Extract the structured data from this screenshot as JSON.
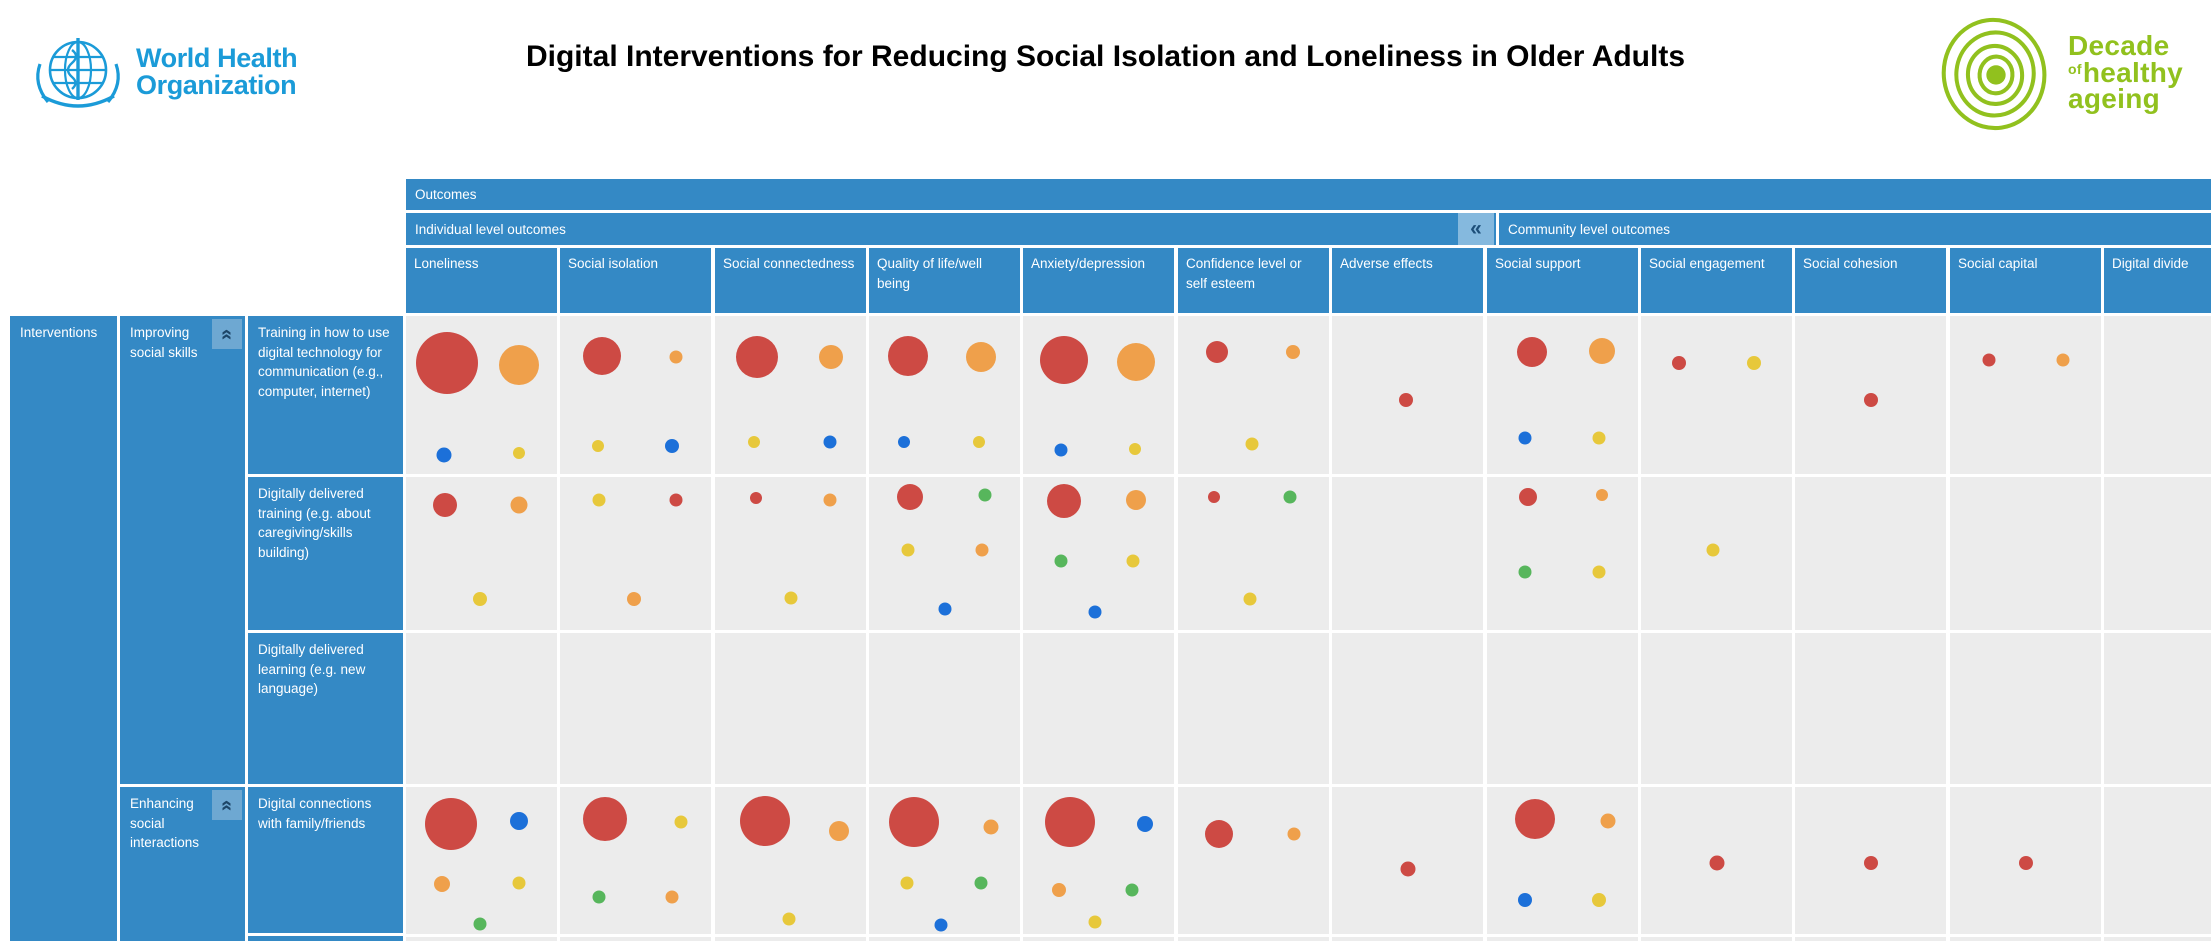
{
  "header": {
    "who_logo": {
      "line1": "World Health",
      "line2": "Organization"
    },
    "title": "Digital Interventions for Reducing Social Isolation and Loneliness in Older Adults",
    "decade_logo": {
      "word1": "Decade",
      "word2_small": "of",
      "word2": "healthy",
      "word3": "ageing"
    }
  },
  "colors": {
    "header_blue": "#3489c5",
    "cell_gray": "#ececec",
    "who_blue": "#1b9bd8",
    "decade_green": "#91c11e",
    "bubbles": {
      "red": "#cd4a44",
      "orange": "#efa04b",
      "blue": "#1c70d9",
      "yellow": "#e7c83b",
      "green": "#57b65c"
    }
  },
  "matrix": {
    "outcomes_label": "Outcomes",
    "individual_group_label": "Individual level outcomes",
    "community_group_label": "Community level outcomes",
    "interventions_label": "Interventions",
    "icons": {
      "collapse_left": "«",
      "collapse_up": "«"
    },
    "columns": [
      {
        "id": "loneliness",
        "label": "Loneliness",
        "group": "individual"
      },
      {
        "id": "social_isolation",
        "label": "Social isolation",
        "group": "individual"
      },
      {
        "id": "social_connectedness",
        "label": "Social connectedness",
        "group": "individual"
      },
      {
        "id": "quality_of_life",
        "label": "Quality of life/well being",
        "group": "individual"
      },
      {
        "id": "anxiety_depression",
        "label": "Anxiety/depression",
        "group": "individual"
      },
      {
        "id": "confidence",
        "label": "Confidence level or self esteem",
        "group": "individual"
      },
      {
        "id": "adverse_effects",
        "label": "Adverse effects",
        "group": "individual"
      },
      {
        "id": "social_support",
        "label": "Social support",
        "group": "community"
      },
      {
        "id": "social_engagement",
        "label": "Social engagement",
        "group": "community"
      },
      {
        "id": "social_cohesion",
        "label": "Social cohesion",
        "group": "community"
      },
      {
        "id": "social_capital",
        "label": "Social capital",
        "group": "community"
      },
      {
        "id": "digital_divide",
        "label": "Digital divide",
        "group": "community"
      }
    ],
    "row_groups": [
      {
        "label": "Improving social skills",
        "rows": [
          {
            "label": "Training in how to use digital technology for communication (e.g., computer, internet)",
            "cells": {
              "loneliness": [
                {
                  "c": "red",
                  "x": 27,
                  "y": 30,
                  "d": 62
                },
                {
                  "c": "orange",
                  "x": 75,
                  "y": 31,
                  "d": 40
                },
                {
                  "c": "blue",
                  "x": 25,
                  "y": 88,
                  "d": 15
                },
                {
                  "c": "yellow",
                  "x": 75,
                  "y": 87,
                  "d": 12
                }
              ],
              "social_isolation": [
                {
                  "c": "red",
                  "x": 28,
                  "y": 25,
                  "d": 38
                },
                {
                  "c": "orange",
                  "x": 77,
                  "y": 26,
                  "d": 13
                },
                {
                  "c": "yellow",
                  "x": 25,
                  "y": 82,
                  "d": 12
                },
                {
                  "c": "blue",
                  "x": 74,
                  "y": 82,
                  "d": 14
                }
              ],
              "social_connectedness": [
                {
                  "c": "red",
                  "x": 28,
                  "y": 26,
                  "d": 42
                },
                {
                  "c": "orange",
                  "x": 77,
                  "y": 26,
                  "d": 24
                },
                {
                  "c": "yellow",
                  "x": 26,
                  "y": 80,
                  "d": 12
                },
                {
                  "c": "blue",
                  "x": 76,
                  "y": 80,
                  "d": 13
                }
              ],
              "quality_of_life": [
                {
                  "c": "red",
                  "x": 26,
                  "y": 25,
                  "d": 40
                },
                {
                  "c": "orange",
                  "x": 74,
                  "y": 26,
                  "d": 30
                },
                {
                  "c": "blue",
                  "x": 23,
                  "y": 80,
                  "d": 12
                },
                {
                  "c": "yellow",
                  "x": 73,
                  "y": 80,
                  "d": 12
                }
              ],
              "anxiety_depression": [
                {
                  "c": "red",
                  "x": 27,
                  "y": 28,
                  "d": 48
                },
                {
                  "c": "orange",
                  "x": 75,
                  "y": 29,
                  "d": 38
                },
                {
                  "c": "blue",
                  "x": 25,
                  "y": 85,
                  "d": 13
                },
                {
                  "c": "yellow",
                  "x": 74,
                  "y": 84,
                  "d": 12
                }
              ],
              "confidence": [
                {
                  "c": "red",
                  "x": 26,
                  "y": 23,
                  "d": 22
                },
                {
                  "c": "orange",
                  "x": 76,
                  "y": 23,
                  "d": 14
                },
                {
                  "c": "yellow",
                  "x": 49,
                  "y": 81,
                  "d": 13
                }
              ],
              "adverse_effects": [
                {
                  "c": "red",
                  "x": 49,
                  "y": 53,
                  "d": 14
                }
              ],
              "social_support": [
                {
                  "c": "red",
                  "x": 30,
                  "y": 23,
                  "d": 30
                },
                {
                  "c": "orange",
                  "x": 76,
                  "y": 22,
                  "d": 26
                },
                {
                  "c": "blue",
                  "x": 25,
                  "y": 77,
                  "d": 13
                },
                {
                  "c": "yellow",
                  "x": 74,
                  "y": 77,
                  "d": 13
                }
              ],
              "social_engagement": [
                {
                  "c": "red",
                  "x": 25,
                  "y": 30,
                  "d": 14
                },
                {
                  "c": "yellow",
                  "x": 75,
                  "y": 30,
                  "d": 14
                }
              ],
              "social_cohesion": [
                {
                  "c": "red",
                  "x": 50,
                  "y": 53,
                  "d": 14
                }
              ],
              "social_capital": [
                {
                  "c": "red",
                  "x": 26,
                  "y": 28,
                  "d": 13
                },
                {
                  "c": "orange",
                  "x": 75,
                  "y": 28,
                  "d": 13
                }
              ],
              "digital_divide": []
            }
          },
          {
            "label": "Digitally delivered training (e.g. about caregiving/skills building)",
            "cells": {
              "loneliness": [
                {
                  "c": "red",
                  "x": 26,
                  "y": 18,
                  "d": 24
                },
                {
                  "c": "orange",
                  "x": 75,
                  "y": 18,
                  "d": 17
                },
                {
                  "c": "yellow",
                  "x": 49,
                  "y": 80,
                  "d": 14
                }
              ],
              "social_isolation": [
                {
                  "c": "yellow",
                  "x": 26,
                  "y": 15,
                  "d": 13
                },
                {
                  "c": "red",
                  "x": 77,
                  "y": 15,
                  "d": 13
                },
                {
                  "c": "orange",
                  "x": 49,
                  "y": 80,
                  "d": 14
                }
              ],
              "social_connectedness": [
                {
                  "c": "red",
                  "x": 27,
                  "y": 14,
                  "d": 12
                },
                {
                  "c": "orange",
                  "x": 76,
                  "y": 15,
                  "d": 13
                },
                {
                  "c": "yellow",
                  "x": 50,
                  "y": 79,
                  "d": 13
                }
              ],
              "quality_of_life": [
                {
                  "c": "red",
                  "x": 27,
                  "y": 13,
                  "d": 26
                },
                {
                  "c": "green",
                  "x": 77,
                  "y": 12,
                  "d": 13
                },
                {
                  "c": "yellow",
                  "x": 26,
                  "y": 48,
                  "d": 13
                },
                {
                  "c": "orange",
                  "x": 75,
                  "y": 48,
                  "d": 13
                },
                {
                  "c": "blue",
                  "x": 50,
                  "y": 86,
                  "d": 13
                }
              ],
              "anxiety_depression": [
                {
                  "c": "red",
                  "x": 27,
                  "y": 16,
                  "d": 34
                },
                {
                  "c": "orange",
                  "x": 75,
                  "y": 15,
                  "d": 20
                },
                {
                  "c": "green",
                  "x": 25,
                  "y": 55,
                  "d": 13
                },
                {
                  "c": "yellow",
                  "x": 73,
                  "y": 55,
                  "d": 13
                },
                {
                  "c": "blue",
                  "x": 48,
                  "y": 88,
                  "d": 13
                }
              ],
              "confidence": [
                {
                  "c": "red",
                  "x": 24,
                  "y": 13,
                  "d": 12
                },
                {
                  "c": "green",
                  "x": 74,
                  "y": 13,
                  "d": 13
                },
                {
                  "c": "yellow",
                  "x": 48,
                  "y": 80,
                  "d": 13
                }
              ],
              "adverse_effects": [],
              "social_support": [
                {
                  "c": "red",
                  "x": 27,
                  "y": 13,
                  "d": 18
                },
                {
                  "c": "orange",
                  "x": 76,
                  "y": 12,
                  "d": 12
                },
                {
                  "c": "green",
                  "x": 25,
                  "y": 62,
                  "d": 13
                },
                {
                  "c": "yellow",
                  "x": 74,
                  "y": 62,
                  "d": 13
                }
              ],
              "social_engagement": [
                {
                  "c": "yellow",
                  "x": 48,
                  "y": 48,
                  "d": 13
                }
              ],
              "social_cohesion": [],
              "social_capital": [],
              "digital_divide": []
            }
          },
          {
            "label": "Digitally delivered learning (e.g. new language)",
            "cells": {}
          }
        ]
      },
      {
        "label": "Enhancing social interactions",
        "rows": [
          {
            "label": "Digital connections with family/friends",
            "cells": {
              "loneliness": [
                {
                  "c": "red",
                  "x": 30,
                  "y": 25,
                  "d": 52
                },
                {
                  "c": "blue",
                  "x": 75,
                  "y": 23,
                  "d": 18
                },
                {
                  "c": "orange",
                  "x": 24,
                  "y": 66,
                  "d": 16
                },
                {
                  "c": "yellow",
                  "x": 75,
                  "y": 65,
                  "d": 13
                },
                {
                  "c": "green",
                  "x": 49,
                  "y": 93,
                  "d": 13
                }
              ],
              "social_isolation": [
                {
                  "c": "red",
                  "x": 30,
                  "y": 22,
                  "d": 44
                },
                {
                  "c": "yellow",
                  "x": 80,
                  "y": 24,
                  "d": 13
                },
                {
                  "c": "green",
                  "x": 26,
                  "y": 75,
                  "d": 13
                },
                {
                  "c": "orange",
                  "x": 74,
                  "y": 75,
                  "d": 13
                }
              ],
              "social_connectedness": [
                {
                  "c": "red",
                  "x": 33,
                  "y": 23,
                  "d": 50
                },
                {
                  "c": "orange",
                  "x": 82,
                  "y": 30,
                  "d": 20
                },
                {
                  "c": "yellow",
                  "x": 49,
                  "y": 90,
                  "d": 13
                }
              ],
              "quality_of_life": [
                {
                  "c": "red",
                  "x": 30,
                  "y": 24,
                  "d": 50
                },
                {
                  "c": "orange",
                  "x": 81,
                  "y": 27,
                  "d": 15
                },
                {
                  "c": "yellow",
                  "x": 25,
                  "y": 65,
                  "d": 13
                },
                {
                  "c": "green",
                  "x": 74,
                  "y": 65,
                  "d": 13
                },
                {
                  "c": "blue",
                  "x": 48,
                  "y": 94,
                  "d": 13
                }
              ],
              "anxiety_depression": [
                {
                  "c": "red",
                  "x": 31,
                  "y": 24,
                  "d": 50
                },
                {
                  "c": "blue",
                  "x": 81,
                  "y": 25,
                  "d": 16
                },
                {
                  "c": "orange",
                  "x": 24,
                  "y": 70,
                  "d": 14
                },
                {
                  "c": "green",
                  "x": 72,
                  "y": 70,
                  "d": 13
                },
                {
                  "c": "yellow",
                  "x": 48,
                  "y": 92,
                  "d": 13
                }
              ],
              "confidence": [
                {
                  "c": "red",
                  "x": 27,
                  "y": 32,
                  "d": 28
                },
                {
                  "c": "orange",
                  "x": 77,
                  "y": 32,
                  "d": 13
                }
              ],
              "adverse_effects": [
                {
                  "c": "red",
                  "x": 50,
                  "y": 56,
                  "d": 15
                }
              ],
              "social_support": [
                {
                  "c": "red",
                  "x": 32,
                  "y": 22,
                  "d": 40
                },
                {
                  "c": "orange",
                  "x": 80,
                  "y": 23,
                  "d": 15
                },
                {
                  "c": "blue",
                  "x": 25,
                  "y": 77,
                  "d": 14
                },
                {
                  "c": "yellow",
                  "x": 74,
                  "y": 77,
                  "d": 14
                }
              ],
              "social_engagement": [
                {
                  "c": "red",
                  "x": 50,
                  "y": 52,
                  "d": 15
                }
              ],
              "social_cohesion": [
                {
                  "c": "red",
                  "x": 50,
                  "y": 52,
                  "d": 14
                }
              ],
              "social_capital": [
                {
                  "c": "red",
                  "x": 50,
                  "y": 52,
                  "d": 14
                }
              ],
              "digital_divide": []
            }
          }
        ]
      }
    ]
  }
}
